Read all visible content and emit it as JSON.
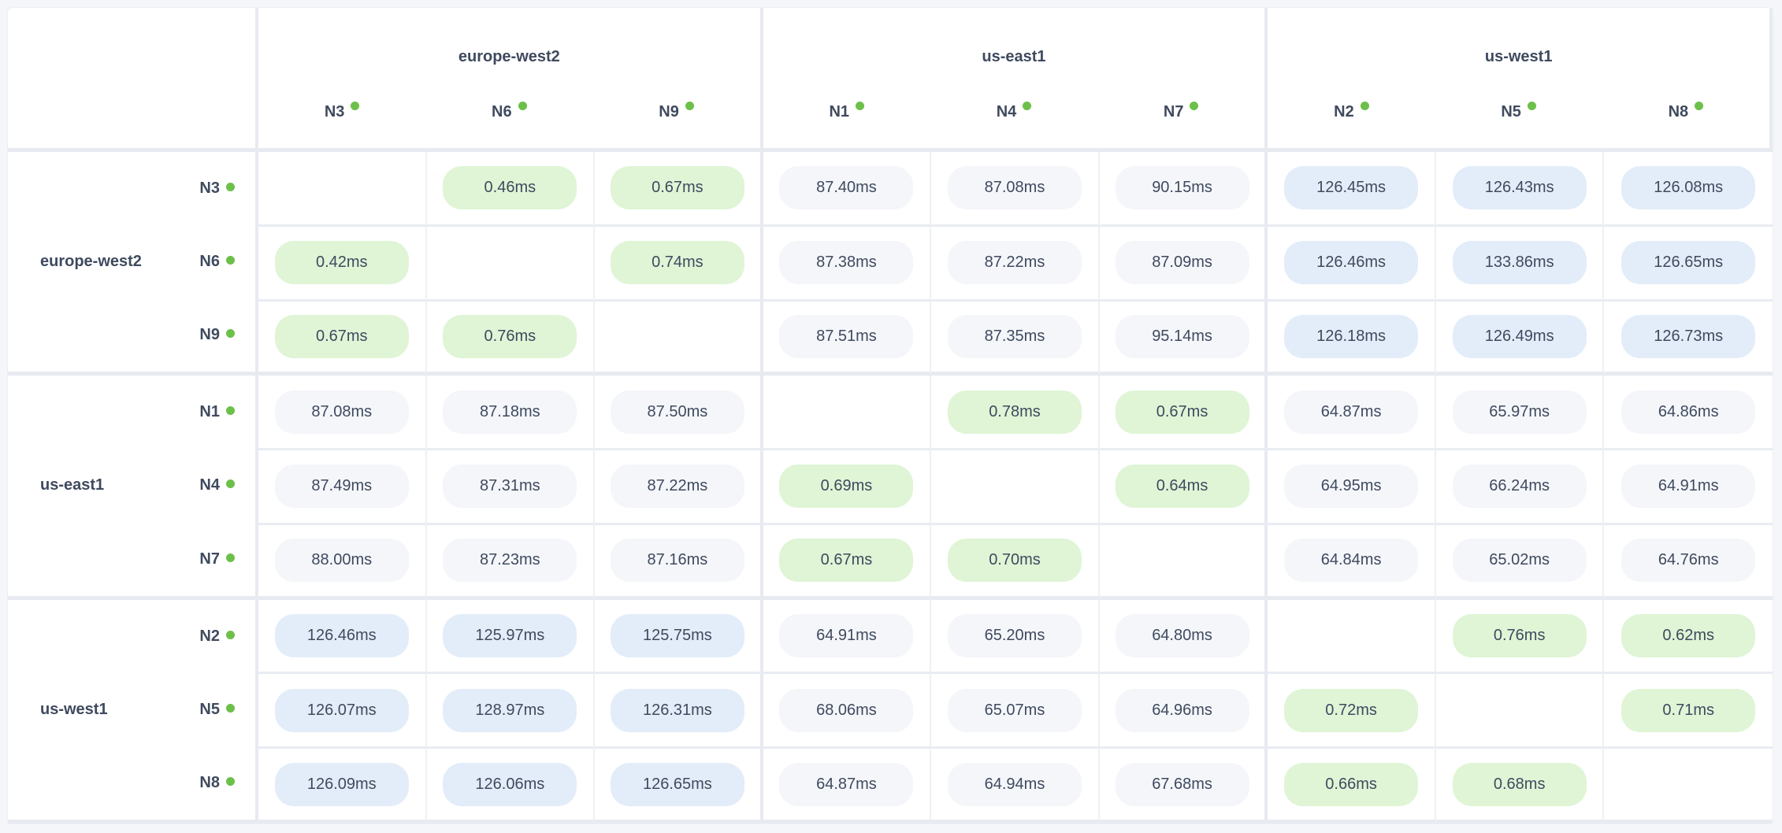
{
  "colors": {
    "same_region": "#dff5d6",
    "near": "#f4f6fa",
    "far": "#e3edf9",
    "status_dot": "#6cc04a"
  },
  "regions": [
    {
      "name": "europe-west2",
      "nodes": [
        "N3",
        "N6",
        "N9"
      ]
    },
    {
      "name": "us-east1",
      "nodes": [
        "N1",
        "N4",
        "N7"
      ]
    },
    {
      "name": "us-west1",
      "nodes": [
        "N2",
        "N5",
        "N8"
      ]
    }
  ],
  "rows": [
    {
      "node": "N3",
      "latencies": [
        null,
        "0.46ms",
        "0.67ms",
        "87.40ms",
        "87.08ms",
        "90.15ms",
        "126.45ms",
        "126.43ms",
        "126.08ms"
      ]
    },
    {
      "node": "N6",
      "latencies": [
        "0.42ms",
        null,
        "0.74ms",
        "87.38ms",
        "87.22ms",
        "87.09ms",
        "126.46ms",
        "133.86ms",
        "126.65ms"
      ]
    },
    {
      "node": "N9",
      "latencies": [
        "0.67ms",
        "0.76ms",
        null,
        "87.51ms",
        "87.35ms",
        "95.14ms",
        "126.18ms",
        "126.49ms",
        "126.73ms"
      ]
    },
    {
      "node": "N1",
      "latencies": [
        "87.08ms",
        "87.18ms",
        "87.50ms",
        null,
        "0.78ms",
        "0.67ms",
        "64.87ms",
        "65.97ms",
        "64.86ms"
      ]
    },
    {
      "node": "N4",
      "latencies": [
        "87.49ms",
        "87.31ms",
        "87.22ms",
        "0.69ms",
        null,
        "0.64ms",
        "64.95ms",
        "66.24ms",
        "64.91ms"
      ]
    },
    {
      "node": "N7",
      "latencies": [
        "88.00ms",
        "87.23ms",
        "87.16ms",
        "0.67ms",
        "0.70ms",
        null,
        "64.84ms",
        "65.02ms",
        "64.76ms"
      ]
    },
    {
      "node": "N2",
      "latencies": [
        "126.46ms",
        "125.97ms",
        "125.75ms",
        "64.91ms",
        "65.20ms",
        "64.80ms",
        null,
        "0.76ms",
        "0.62ms"
      ]
    },
    {
      "node": "N5",
      "latencies": [
        "126.07ms",
        "128.97ms",
        "126.31ms",
        "68.06ms",
        "65.07ms",
        "64.96ms",
        "0.72ms",
        null,
        "0.71ms"
      ]
    },
    {
      "node": "N8",
      "latencies": [
        "126.09ms",
        "126.06ms",
        "126.65ms",
        "64.87ms",
        "64.94ms",
        "67.68ms",
        "0.66ms",
        "0.68ms",
        null
      ]
    }
  ]
}
